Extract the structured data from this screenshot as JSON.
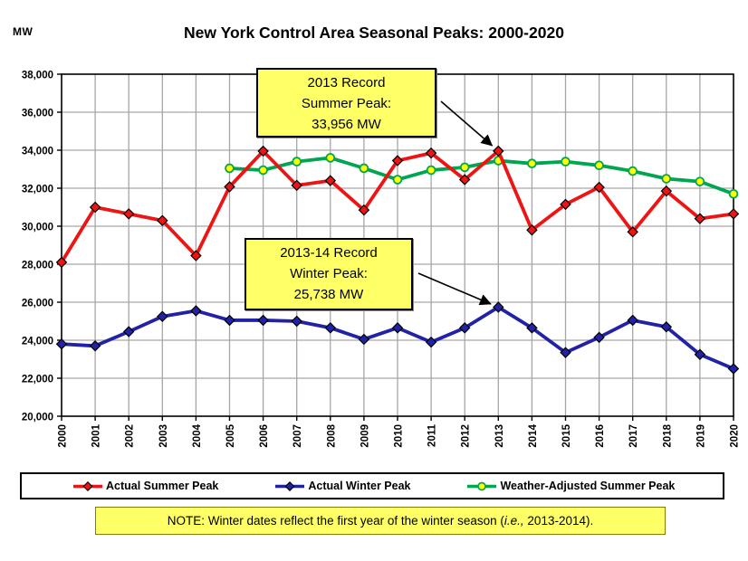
{
  "header": {
    "units_label": "MW",
    "title": "New York Control Area Seasonal Peaks: 2000-2020"
  },
  "chart_data": {
    "type": "line",
    "x": [
      2000,
      2001,
      2002,
      2003,
      2004,
      2005,
      2006,
      2007,
      2008,
      2009,
      2010,
      2011,
      2012,
      2013,
      2014,
      2015,
      2016,
      2017,
      2018,
      2019,
      2020
    ],
    "series": [
      {
        "name": "Actual Summer Peak",
        "color": "#EE1414",
        "marker": "diamond",
        "marker_fill": "#EE1414",
        "values": [
          28100,
          31000,
          30650,
          30300,
          28450,
          32075,
          33950,
          32150,
          32400,
          30850,
          33450,
          33850,
          32450,
          33956,
          29800,
          31150,
          32050,
          29700,
          31850,
          30400,
          30650
        ]
      },
      {
        "name": "Actual Winter Peak",
        "color": "#2222A8",
        "marker": "diamond",
        "marker_fill": "#2222A8",
        "values": [
          23800,
          23700,
          24450,
          25250,
          25550,
          25050,
          25050,
          25000,
          24650,
          24050,
          24650,
          23900,
          24650,
          25738,
          24650,
          23350,
          24150,
          25050,
          24700,
          23250,
          22500
        ]
      },
      {
        "name": "Weather-Adjusted Summer Peak",
        "color": "#00A550",
        "marker": "circle",
        "marker_fill": "#FFFF00",
        "values": [
          null,
          null,
          null,
          null,
          null,
          33050,
          32950,
          33400,
          33600,
          33050,
          32450,
          32950,
          33100,
          33450,
          33300,
          33400,
          33200,
          32900,
          32500,
          32350,
          31700
        ]
      }
    ],
    "ylabel": "MW",
    "ylim": [
      20000,
      38000
    ],
    "ytick_step": 2000,
    "grid": true,
    "legend_position": "bottom",
    "gridline_color": "#A6A6A6",
    "annotations": [
      {
        "line1": "2013 Record",
        "line2": "Summer  Peak:",
        "line3": "33,956 MW",
        "target_year": 2013,
        "target_series": 0,
        "bg": "#FFFF66"
      },
      {
        "line1": "2013-14 Record",
        "line2": "Winter  Peak:",
        "line3": "25,738 MW",
        "target_year": 2013,
        "target_series": 1,
        "bg": "#FFFF66"
      }
    ]
  },
  "note": {
    "prefix": "NOTE: Winter dates reflect the first year of the winter season (",
    "italic": "i.e.,",
    "suffix": " 2013-2014).",
    "bg": "#FFFF66"
  }
}
